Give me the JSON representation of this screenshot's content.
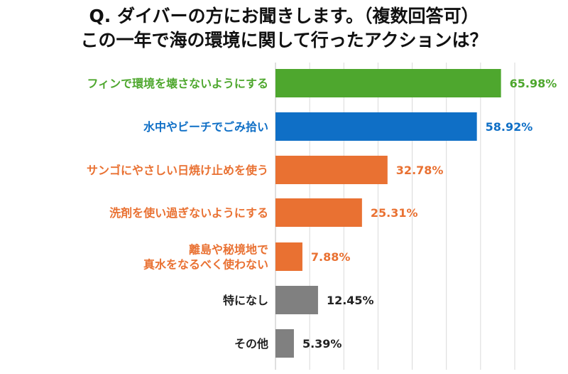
{
  "title_lines": [
    "Q. ダイバーの方にお聞きします。（複数回答可）",
    "この一年で海の環境に関して行ったアクションは？"
  ],
  "chart_data": {
    "type": "bar",
    "orientation": "horizontal",
    "title": "Q. ダイバーの方にお聞きします。（複数回答可） この一年で海の環境に関して行ったアクションは？",
    "categories": [
      [
        "フィンで環境を壊さないようにする"
      ],
      [
        "水中やビーチでごみ拾い"
      ],
      [
        "サンゴにやさしい日焼け止めを使う"
      ],
      [
        "洗剤を使い過ぎないようにする"
      ],
      [
        "離島や秘境地で",
        "真水をなるべく使わない"
      ],
      [
        "特になし"
      ],
      [
        "その他"
      ]
    ],
    "values": [
      65.98,
      58.92,
      32.78,
      25.31,
      7.88,
      12.45,
      5.39
    ],
    "value_labels": [
      "65.98%",
      "58.92%",
      "32.78%",
      "25.31%",
      "7.88%",
      "12.45%",
      "5.39%"
    ],
    "colors": [
      "#4ea72e",
      "#0f6fc6",
      "#e97132",
      "#e97132",
      "#e97132",
      "#808080",
      "#808080"
    ],
    "label_colors": [
      "#4ea72e",
      "#0f6fc6",
      "#e97132",
      "#e97132",
      "#e97132",
      "#222222",
      "#222222"
    ],
    "xlim": [
      0,
      70
    ],
    "xlabel": "",
    "ylabel": "",
    "grid": true,
    "unit": "%"
  }
}
